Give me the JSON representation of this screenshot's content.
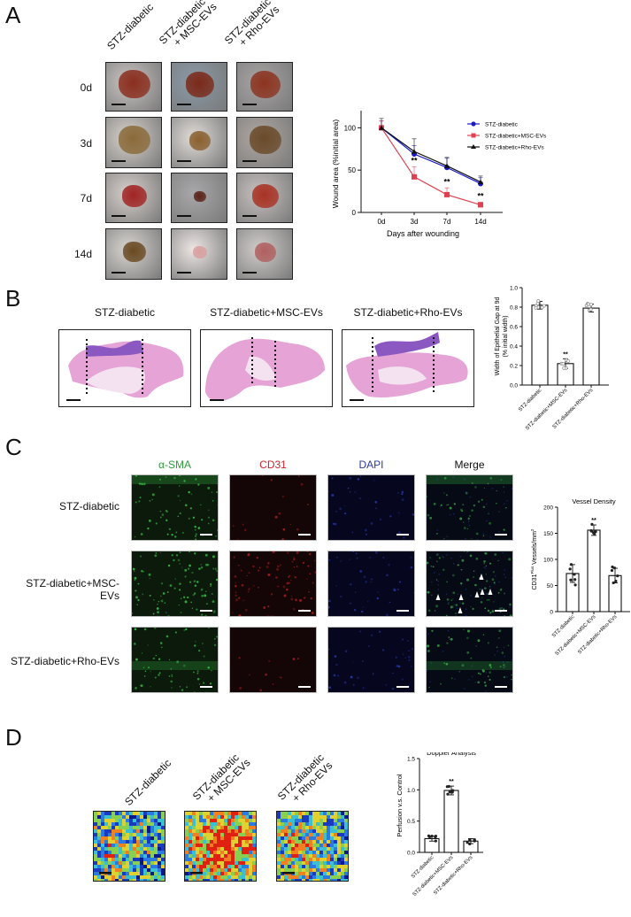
{
  "figure": {
    "panels": [
      "A",
      "B",
      "C",
      "D"
    ]
  },
  "panel_a": {
    "letter": "A",
    "column_headers": [
      {
        "line1": "STZ-diabetic",
        "line2": ""
      },
      {
        "line1": "STZ-diabetic",
        "line2": "+ MSC-EVs"
      },
      {
        "line1": "STZ-diabetic",
        "line2": "+ Rho-EVs"
      }
    ],
    "row_labels": [
      "0d",
      "3d",
      "7d",
      "14d"
    ],
    "image_type": "wound-photograph"
  },
  "panel_b": {
    "letter": "B",
    "column_headers": [
      "STZ-diabetic",
      "STZ-diabetic+MSC-EVs",
      "STZ-diabetic+Rho-EVs"
    ],
    "image_type": "H&E-histology-section"
  },
  "panel_c": {
    "letter": "C",
    "channel_headers": [
      {
        "label": "α-SMA",
        "color": "#2e9a3a"
      },
      {
        "label": "CD31",
        "color": "#d0222a"
      },
      {
        "label": "DAPI",
        "color": "#2a3a9a"
      },
      {
        "label": "Merge",
        "color": "#111111"
      }
    ],
    "row_labels": [
      "STZ-diabetic",
      "STZ-diabetic+MSC-EVs",
      "STZ-diabetic+Rho-EVs"
    ],
    "image_type": "immunofluorescence"
  },
  "panel_d": {
    "letter": "D",
    "column_headers": [
      {
        "line1": "STZ-diabetic",
        "line2": ""
      },
      {
        "line1": "STZ-diabetic",
        "line2": "+ MSC-EVs"
      },
      {
        "line1": "STZ-diabetic",
        "line2": "+ Rho-EVs"
      }
    ],
    "image_type": "laser-doppler-perfusion-map"
  },
  "chart_data": [
    {
      "id": "wound-area",
      "type": "line",
      "title": "",
      "xlabel": "Days after wounding",
      "ylabel": "Wound area (%initial area)",
      "categories": [
        "0d",
        "3d",
        "7d",
        "14d"
      ],
      "ylim": [
        0,
        115
      ],
      "yticks": [
        0,
        50,
        100
      ],
      "grid": false,
      "legend_position": "upper right",
      "series": [
        {
          "name": "STZ-diabetic",
          "color": "#1a1ac8",
          "marker": "circle",
          "values": [
            100,
            69,
            53,
            34
          ],
          "errors": [
            8,
            10,
            11,
            7
          ]
        },
        {
          "name": "STZ-diabetic+MSC-EVs",
          "color": "#e04050",
          "marker": "square",
          "values": [
            100,
            42,
            21,
            9
          ],
          "errors": [
            8,
            12,
            8,
            3
          ]
        },
        {
          "name": "STZ-diabetic+Rho-EVs",
          "color": "#111111",
          "marker": "triangle",
          "values": [
            100,
            72,
            55,
            36
          ],
          "errors": [
            11,
            15,
            10,
            7
          ]
        }
      ],
      "annotations": [
        {
          "x": "3d",
          "text": "**"
        },
        {
          "x": "7d",
          "text": "**"
        },
        {
          "x": "14d",
          "text": "**"
        }
      ]
    },
    {
      "id": "epithelial-gap",
      "type": "bar",
      "title": "",
      "xlabel": "",
      "ylabel": "Width of Epithelial Gap at 9d (% initial width)",
      "ylabel_line1": "Width of Epithelial Gap at 9d",
      "ylabel_line2": "(% initial width)",
      "categories": [
        "STZ-diabetic",
        "STZ-diabetic+MSC-EVs",
        "STZ-diabetic+Rho-EVs"
      ],
      "values": [
        0.82,
        0.22,
        0.79
      ],
      "errors": [
        0.04,
        0.05,
        0.04
      ],
      "ylim": [
        0,
        1.0
      ],
      "yticks": [
        "0.0",
        "0.2",
        "0.4",
        "0.6",
        "0.8",
        "1.0"
      ],
      "grid": false,
      "annotations": [
        {
          "x": "STZ-diabetic+MSC-EVs",
          "text": "**"
        }
      ]
    },
    {
      "id": "vessel-density",
      "type": "bar",
      "title": "Vessel Density",
      "xlabel": "",
      "ylabel": "CD31Plus Vessels/mm2",
      "ylabel_main": "CD31",
      "ylabel_sup": "Plus",
      "ylabel_rest": " Vessels/mm",
      "ylabel_sup2": "2",
      "categories": [
        "STZ-diabetic",
        "STZ-diabetic+MSC-EVs",
        "STZ-diabetic+Rho-EVs"
      ],
      "values": [
        73,
        156,
        69
      ],
      "errors": [
        17,
        10,
        14
      ],
      "ylim": [
        0,
        200
      ],
      "yticks": [
        "0",
        "50",
        "100",
        "150",
        "200"
      ],
      "grid": false,
      "annotations": [
        {
          "x": "STZ-diabetic+MSC-EVs",
          "text": "**"
        }
      ]
    },
    {
      "id": "doppler",
      "type": "bar",
      "title": "Doppler Analysis",
      "xlabel": "",
      "ylabel": "Perfusion v.s. Control",
      "categories": [
        "STZ-diabetic",
        "STZ-diabetic+MSC-EVs",
        "STZ-diabetic+Rho-EVs"
      ],
      "values": [
        0.22,
        0.99,
        0.18
      ],
      "errors": [
        0.04,
        0.07,
        0.04
      ],
      "ylim": [
        0,
        1.5
      ],
      "yticks": [
        "0.0",
        "0.5",
        "1.0",
        "1.5"
      ],
      "grid": false,
      "annotations": [
        {
          "x": "STZ-diabetic+MSC-EVs",
          "text": "**"
        }
      ]
    }
  ]
}
